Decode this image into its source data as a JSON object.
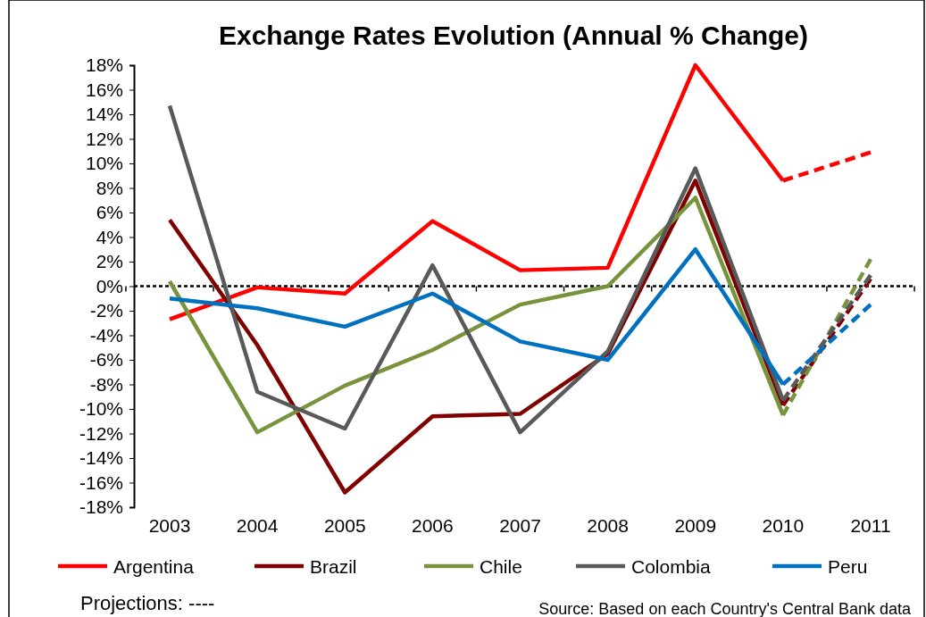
{
  "chart_data": {
    "type": "line",
    "title": "Exchange Rates Evolution (Annual % Change)",
    "categories": [
      "2003",
      "2004",
      "2005",
      "2006",
      "2007",
      "2008",
      "2009",
      "2010",
      "2011"
    ],
    "series": [
      {
        "name": "Argentina",
        "color": "#ff0000",
        "values": [
          -2.7,
          -0.1,
          -0.6,
          5.3,
          1.3,
          1.5,
          18.0,
          8.6,
          null
        ]
      },
      {
        "name": "Brazil",
        "color": "#800000",
        "values": [
          5.4,
          -4.8,
          -16.8,
          -10.6,
          -10.4,
          -5.5,
          8.6,
          -9.7,
          null
        ]
      },
      {
        "name": "Chile",
        "color": "#77933c",
        "values": [
          0.4,
          -11.9,
          -8.1,
          -5.2,
          -1.5,
          0,
          7.2,
          -10.5,
          null
        ]
      },
      {
        "name": "Colombia",
        "color": "#595959",
        "values": [
          14.7,
          -8.6,
          -11.6,
          1.7,
          -11.9,
          -5.3,
          9.6,
          -9.3,
          null
        ]
      },
      {
        "name": "Peru",
        "color": "#0070c0",
        "values": [
          -1.0,
          -1.8,
          -3.3,
          -0.6,
          -4.5,
          -6.0,
          3.0,
          -8.0,
          null
        ]
      },
      {
        "color": "#ff0000",
        "line_style": "dashed",
        "values": [
          null,
          null,
          null,
          null,
          null,
          null,
          null,
          8.6,
          10.9
        ]
      },
      {
        "color": "#800000",
        "line_style": "dashed",
        "values": [
          null,
          null,
          null,
          null,
          null,
          null,
          null,
          -9.7,
          0.6
        ]
      },
      {
        "color": "#77933c",
        "line_style": "dashed",
        "values": [
          null,
          null,
          null,
          null,
          null,
          null,
          null,
          -10.5,
          2.2
        ]
      },
      {
        "color": "#595959",
        "line_style": "dashed",
        "values": [
          null,
          null,
          null,
          null,
          null,
          null,
          null,
          -9.3,
          0.9
        ]
      },
      {
        "color": "#0070c0",
        "line_style": "dashed",
        "values": [
          null,
          null,
          null,
          null,
          null,
          null,
          null,
          -8.0,
          -1.5
        ]
      }
    ],
    "ylim": [
      -18,
      18
    ],
    "yticks": [
      {
        "value": -18,
        "label": "-18%"
      },
      {
        "value": -16,
        "label": "-16%"
      },
      {
        "value": -14,
        "label": "-14%"
      },
      {
        "value": -12,
        "label": "-12%"
      },
      {
        "value": -10,
        "label": "-10%"
      },
      {
        "value": -8,
        "label": "-8%"
      },
      {
        "value": -6,
        "label": "-6%"
      },
      {
        "value": -4,
        "label": "-4%"
      },
      {
        "value": -2,
        "label": "-2%"
      },
      {
        "value": 0,
        "label": "0%"
      },
      {
        "value": 2,
        "label": "2%"
      },
      {
        "value": 4,
        "label": "4%"
      },
      {
        "value": 6,
        "label": "6%"
      },
      {
        "value": 8,
        "label": "8%"
      },
      {
        "value": 10,
        "label": "10%"
      },
      {
        "value": 12,
        "label": "12%"
      },
      {
        "value": 14,
        "label": "14%"
      },
      {
        "value": 16,
        "label": "16%"
      },
      {
        "value": 18,
        "label": "18%"
      }
    ],
    "ref_lines": [
      {
        "axis": "y",
        "value": 0,
        "color": "#000000",
        "line_style": "dashed"
      }
    ],
    "line_style": "solid",
    "marker": "none",
    "grid": false,
    "legend": "bottom",
    "annotations": [
      "Projections: ----",
      "Source: Based on each Country's Central Bank data"
    ]
  }
}
